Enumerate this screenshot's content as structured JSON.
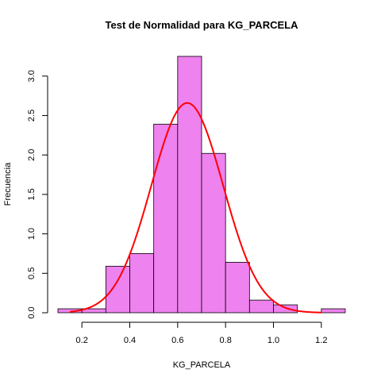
{
  "chart_data": {
    "type": "histogram",
    "title": "Test de Normalidad para  KG_PARCELA",
    "xlabel": "KG_PARCELA",
    "ylabel": "Frecuencia",
    "bins": [
      {
        "x0": 0.1,
        "x1": 0.2,
        "value": 0.05
      },
      {
        "x0": 0.2,
        "x1": 0.3,
        "value": 0.05
      },
      {
        "x0": 0.3,
        "x1": 0.4,
        "value": 0.59
      },
      {
        "x0": 0.4,
        "x1": 0.5,
        "value": 0.75
      },
      {
        "x0": 0.5,
        "x1": 0.6,
        "value": 2.39
      },
      {
        "x0": 0.6,
        "x1": 0.7,
        "value": 3.25
      },
      {
        "x0": 0.7,
        "x1": 0.8,
        "value": 2.02
      },
      {
        "x0": 0.8,
        "x1": 0.9,
        "value": 0.64
      },
      {
        "x0": 0.9,
        "x1": 1.0,
        "value": 0.16
      },
      {
        "x0": 1.0,
        "x1": 1.1,
        "value": 0.1
      },
      {
        "x0": 1.1,
        "x1": 1.2,
        "value": 0.0
      },
      {
        "x0": 1.2,
        "x1": 1.3,
        "value": 0.05
      }
    ],
    "normal_curve": {
      "mean": 0.64,
      "sd": 0.15
    },
    "xlim": [
      0.1,
      1.3
    ],
    "ylim": [
      0,
      3.25
    ],
    "xticks": [
      "0.2",
      "0.4",
      "0.6",
      "0.8",
      "1.0",
      "1.2"
    ],
    "yticks": [
      "0.0",
      "0.5",
      "1.0",
      "1.5",
      "2.0",
      "2.5",
      "3.0"
    ],
    "bar_color": "#ee82ee",
    "curve_color": "#ff0000",
    "grid": false
  }
}
